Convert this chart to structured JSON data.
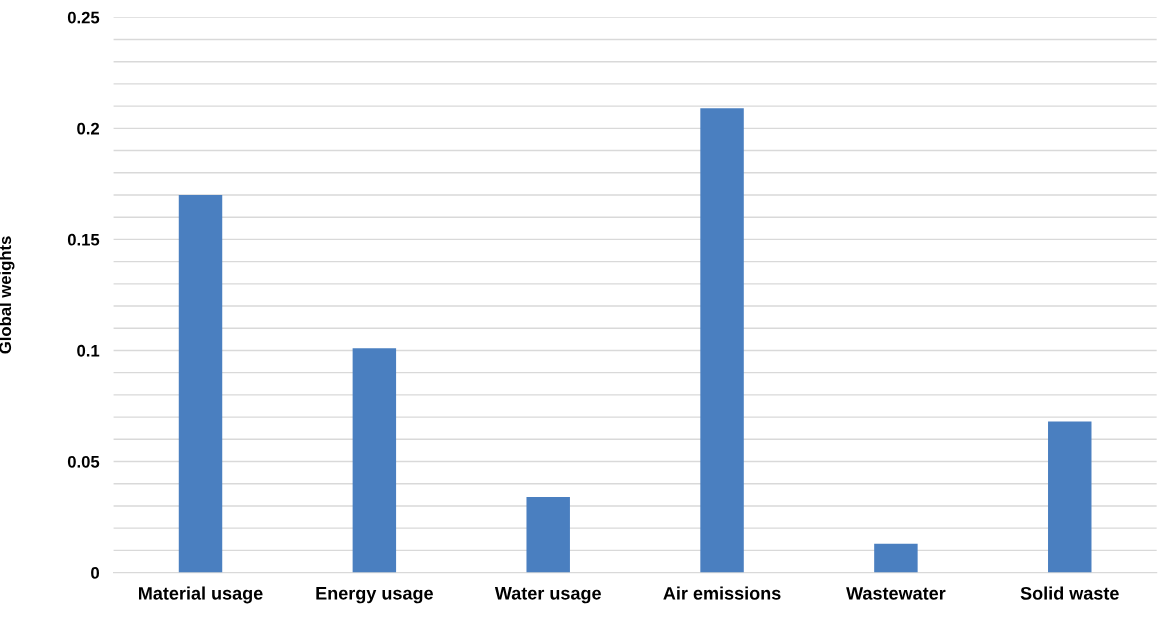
{
  "chart_data": {
    "type": "bar",
    "ylabel": "Global weights",
    "categories": [
      "Material usage",
      "Energy usage",
      "Water usage",
      "Air emissions",
      "Wastewater",
      "Solid waste"
    ],
    "values": [
      0.17,
      0.101,
      0.034,
      0.209,
      0.013,
      0.068
    ],
    "color": "#4a7fc0",
    "ylim": [
      0,
      0.25
    ],
    "yticks": [
      0,
      {
        "value": 0.01,
        "label": null
      },
      {
        "value": 0.02,
        "label": null
      },
      {
        "value": 0.03,
        "label": null
      },
      {
        "value": 0.04,
        "label": null
      },
      0.05,
      {
        "value": 0.06,
        "label": null
      },
      {
        "value": 0.07,
        "label": null
      },
      {
        "value": 0.08,
        "label": null
      },
      {
        "value": 0.09,
        "label": null
      },
      0.1,
      {
        "value": 0.11,
        "label": null
      },
      {
        "value": 0.12,
        "label": null
      },
      {
        "value": 0.13,
        "label": null
      },
      {
        "value": 0.14,
        "label": null
      },
      0.15,
      {
        "value": 0.16,
        "label": null
      },
      {
        "value": 0.17,
        "label": null
      },
      {
        "value": 0.18,
        "label": null
      },
      {
        "value": 0.19,
        "label": null
      },
      0.2,
      {
        "value": 0.21,
        "label": null
      },
      {
        "value": 0.22,
        "label": null
      },
      {
        "value": 0.23,
        "label": null
      },
      {
        "value": 0.24,
        "label": null
      },
      0.25
    ],
    "grid": "y"
  }
}
